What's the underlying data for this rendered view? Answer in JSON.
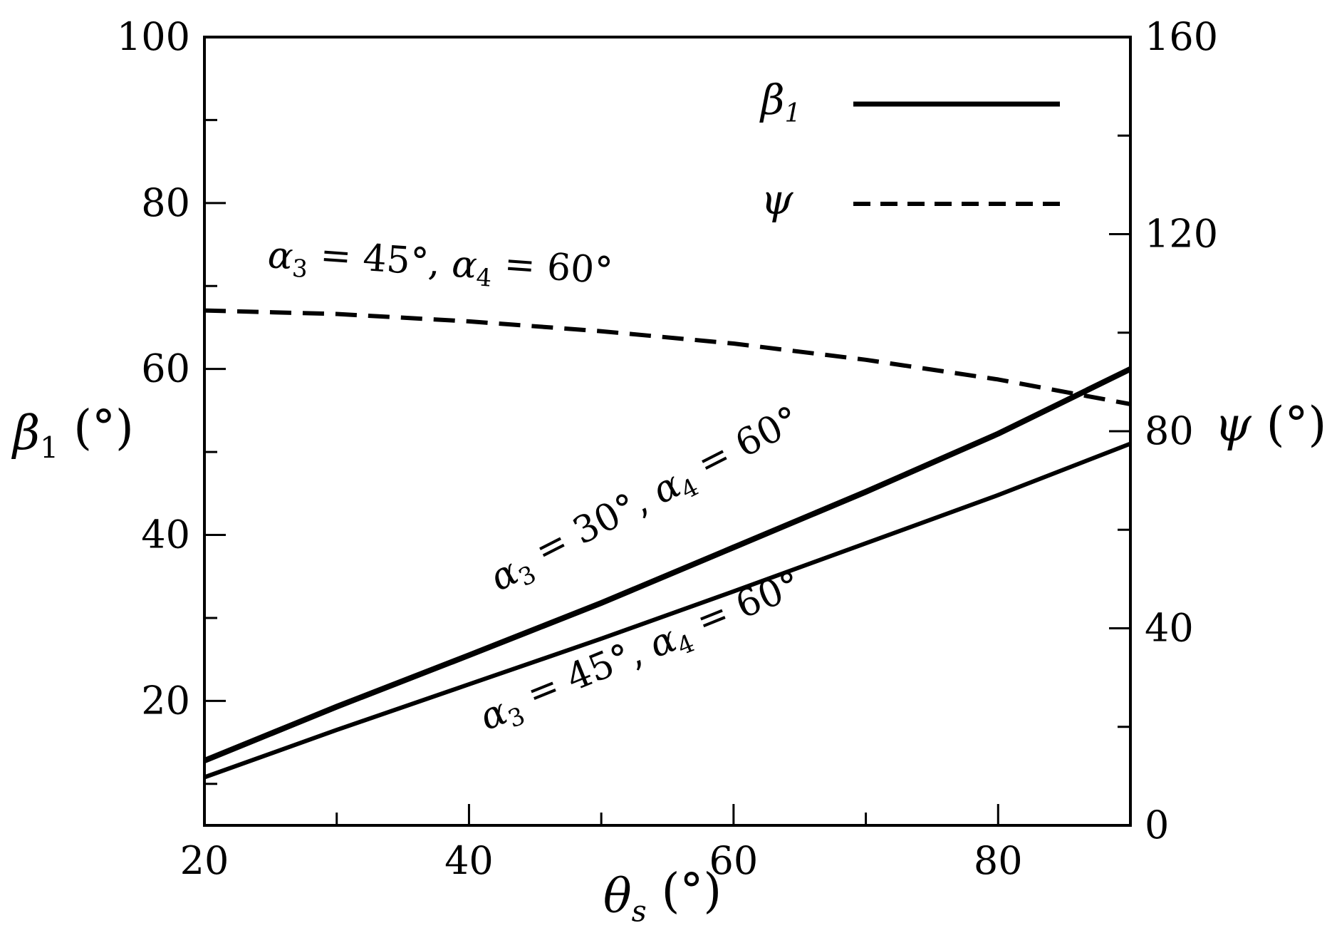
{
  "chart_data": {
    "type": "line",
    "xlabel": "θs (°)",
    "xlabel_parts": {
      "symbol": "θ",
      "sub": "s",
      "unit": "(°)"
    },
    "ylabel_left": "β1 (°)",
    "ylabel_left_parts": {
      "symbol": "β",
      "sub": "1",
      "unit": "(°)"
    },
    "ylabel_right": "ψ (°)",
    "ylabel_right_parts": {
      "symbol": "ψ",
      "unit": "(°)"
    },
    "xlim": [
      20,
      90
    ],
    "ylim_left": [
      5,
      100
    ],
    "ylim_right": [
      0,
      160
    ],
    "xticks": [
      20,
      40,
      60,
      80
    ],
    "yticks_left": [
      20,
      40,
      60,
      80,
      100
    ],
    "yticks_right": [
      0,
      40,
      80,
      120,
      160
    ],
    "grid": false,
    "legend_position": "top-right",
    "legend": [
      {
        "label": "β1",
        "symbol": "β",
        "sub": "1",
        "style": "solid"
      },
      {
        "label": "ψ",
        "symbol": "ψ",
        "style": "dashed"
      }
    ],
    "series": [
      {
        "label": "α3 = 30°, α4 = 60°",
        "axis": "left",
        "style": "solid",
        "x": [
          20,
          30,
          40,
          50,
          60,
          70,
          80,
          90
        ],
        "y": [
          12.8,
          19.3,
          25.5,
          31.8,
          38.5,
          45.2,
          52.2,
          60.0
        ]
      },
      {
        "label": "α3 = 45°, α4 = 60°",
        "axis": "left",
        "style": "solid",
        "x": [
          20,
          30,
          40,
          50,
          60,
          70,
          80,
          90
        ],
        "y": [
          10.8,
          16.5,
          22.0,
          27.5,
          33.2,
          39.0,
          44.8,
          51.0
        ]
      },
      {
        "label": "α3 = 45°, α4 = 60°",
        "axis": "right",
        "style": "dashed",
        "x": [
          20,
          30,
          40,
          50,
          60,
          70,
          80,
          90
        ],
        "y": [
          104.5,
          103.8,
          102.3,
          100.3,
          97.8,
          94.5,
          90.5,
          85.5
        ]
      }
    ],
    "annotations": [
      {
        "series": 0,
        "parts": [
          "α",
          "3",
          " = 30°,  ",
          "α",
          "4",
          " = 60°"
        ]
      },
      {
        "series": 1,
        "parts": [
          "α",
          "3",
          " = 45°,  ",
          "α",
          "4",
          " = 60°"
        ]
      },
      {
        "series": 2,
        "parts": [
          "α",
          "3",
          " = 45°,  ",
          "α",
          "4",
          " = 60°"
        ]
      }
    ]
  }
}
